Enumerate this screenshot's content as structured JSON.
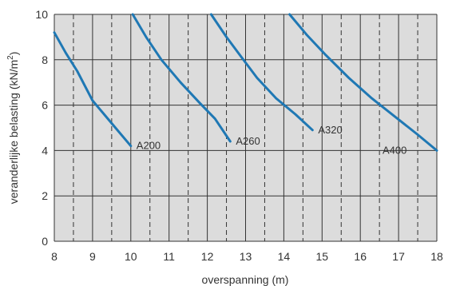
{
  "chart_data": {
    "type": "line",
    "title": "",
    "xlabel": "overspanning (m)",
    "ylabel": "veranderlijke belasting (kN/m²)",
    "ylabel_main": "veranderlijke belasting (kN/m",
    "ylabel_sup": "2",
    "ylabel_end": ")",
    "xlim": [
      8,
      18
    ],
    "ylim": [
      0,
      10
    ],
    "x_ticks": [
      8,
      9,
      10,
      11,
      12,
      13,
      14,
      15,
      16,
      17,
      18
    ],
    "y_ticks": [
      0,
      2,
      4,
      6,
      8,
      10
    ],
    "x_tick_labels": [
      "8",
      "9",
      "10",
      "11",
      "12",
      "13",
      "14",
      "15",
      "16",
      "17",
      "18"
    ],
    "y_tick_labels": [
      "0",
      "2",
      "4",
      "6",
      "8",
      "10"
    ],
    "grid": true,
    "minor_x_grid_dashed": [
      8.5,
      9.5,
      10.5,
      11.5,
      12.5,
      13.5,
      14.5,
      15.5,
      16.5,
      17.5
    ],
    "plot_background": "#dcdcdc",
    "series": [
      {
        "name": "A200",
        "color": "#1f78b4",
        "x": [
          8.0,
          8.3,
          8.6,
          9.0,
          9.3,
          9.6,
          10.0
        ],
        "y": [
          9.2,
          8.3,
          7.5,
          6.2,
          5.6,
          5.0,
          4.2
        ]
      },
      {
        "name": "A260",
        "color": "#1f78b4",
        "x": [
          10.05,
          10.4,
          10.8,
          11.3,
          11.8,
          12.2,
          12.6
        ],
        "y": [
          10.0,
          9.0,
          8.0,
          7.0,
          6.1,
          5.4,
          4.4
        ]
      },
      {
        "name": "A320",
        "color": "#1f78b4",
        "x": [
          12.1,
          12.5,
          12.9,
          13.3,
          13.8,
          14.3,
          14.75
        ],
        "y": [
          10.0,
          9.0,
          8.1,
          7.2,
          6.3,
          5.6,
          4.9
        ]
      },
      {
        "name": "A400",
        "color": "#1f78b4",
        "x": [
          14.15,
          14.6,
          15.1,
          15.7,
          16.3,
          16.9,
          17.5,
          18.0
        ],
        "y": [
          10.0,
          9.1,
          8.2,
          7.2,
          6.3,
          5.5,
          4.7,
          4.0
        ]
      }
    ]
  }
}
